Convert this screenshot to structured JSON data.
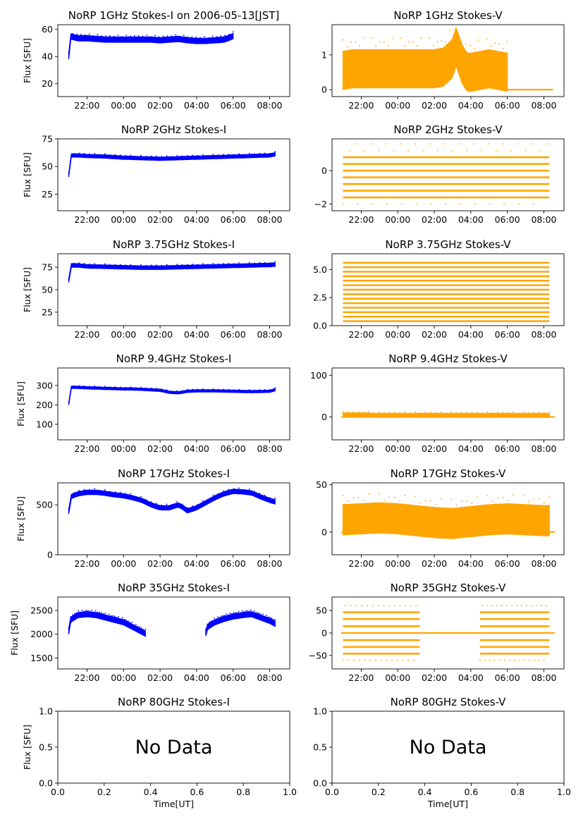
{
  "chart_data": [
    {
      "type": "scatter",
      "title": "NoRP 1GHz Stokes-I on 2006-05-13[JST]",
      "ylabel": "Flux [SFU]",
      "xlabel": "",
      "color": "#0000ff",
      "xlim": [
        20.4,
        33.1
      ],
      "ylim": [
        10.5,
        63.5
      ],
      "xticks": [
        22,
        24,
        26,
        28,
        30,
        32
      ],
      "xticklabels": [
        "22:00",
        "00:00",
        "02:00",
        "04:00",
        "06:00",
        "08:00"
      ],
      "yticks": [
        20,
        40,
        60
      ],
      "yticklabels": [
        "20",
        "40",
        "60"
      ],
      "x": [
        21.0,
        21.05,
        21.2,
        21.5,
        22,
        22.5,
        23,
        23.5,
        24,
        24.5,
        25,
        25.5,
        26,
        26.5,
        27,
        27.5,
        28,
        28.5,
        29,
        29.5,
        30.0
      ],
      "y": [
        40,
        55,
        54.5,
        53.5,
        53.5,
        53,
        52.5,
        52.5,
        52.5,
        52.5,
        52.5,
        52.5,
        52,
        52.5,
        53,
        52,
        51.5,
        51.5,
        52,
        52.5,
        55
      ],
      "band": 2
    },
    {
      "type": "scatter",
      "title": "NoRP 1GHz Stokes-V",
      "ylabel": "",
      "xlabel": "",
      "color": "#ffa500",
      "xlim": [
        20.4,
        33.1
      ],
      "ylim": [
        -0.2,
        1.87
      ],
      "xticks": [
        22,
        24,
        26,
        28,
        30,
        32
      ],
      "xticklabels": [
        "22:00",
        "00:00",
        "02:00",
        "04:00",
        "06:00",
        "08:00"
      ],
      "yticks": [
        0,
        1
      ],
      "yticklabels": [
        "0",
        "1"
      ],
      "x": [
        21.0,
        21.5,
        22,
        23,
        24,
        25,
        26,
        26.5,
        27,
        27.2,
        27.5,
        27.8,
        28,
        28.5,
        29,
        29.5,
        30.0
      ],
      "y": [
        0.55,
        0.6,
        0.6,
        0.6,
        0.6,
        0.6,
        0.6,
        0.65,
        0.9,
        1.25,
        0.75,
        0.5,
        0.5,
        0.55,
        0.6,
        0.55,
        0.5
      ],
      "band": 0.55,
      "flat": {
        "x": [
          30.0,
          32.5
        ],
        "y": 0
      }
    },
    {
      "type": "scatter",
      "title": "NoRP 2GHz Stokes-I",
      "ylabel": "Flux [SFU]",
      "xlabel": "",
      "color": "#0000ff",
      "xlim": [
        20.4,
        33.1
      ],
      "ylim": [
        10,
        75
      ],
      "xticks": [
        22,
        24,
        26,
        28,
        30,
        32
      ],
      "xticklabels": [
        "22:00",
        "00:00",
        "02:00",
        "04:00",
        "06:00",
        "08:00"
      ],
      "yticks": [
        25,
        50,
        75
      ],
      "yticklabels": [
        "25",
        "50",
        "75"
      ],
      "x": [
        21.0,
        21.1,
        21.5,
        22,
        23,
        24,
        25,
        26,
        27,
        28,
        29,
        30,
        31,
        32,
        32.3
      ],
      "y": [
        42,
        60,
        60,
        59.5,
        59,
        58,
        57.5,
        57,
        57.5,
        58,
        58.5,
        59,
        59.5,
        60,
        61
      ],
      "band": 1.5
    },
    {
      "type": "scatter",
      "title": "NoRP 2GHz Stokes-V",
      "ylabel": "",
      "xlabel": "",
      "color": "#ffa500",
      "xlim": [
        20.4,
        33.1
      ],
      "ylim": [
        -2.4,
        1.9
      ],
      "xticks": [
        22,
        24,
        26,
        28,
        30,
        32
      ],
      "xticklabels": [
        "22:00",
        "00:00",
        "02:00",
        "04:00",
        "06:00",
        "08:00"
      ],
      "yticks": [
        -2,
        0
      ],
      "yticklabels": [
        "−2",
        "0"
      ],
      "levels": [
        -1.6,
        -1.2,
        -0.8,
        -0.4,
        0,
        0.4,
        0.8
      ],
      "levelsx": [
        21.0,
        32.3
      ],
      "sparse": [
        -2.0,
        1.2,
        1.6
      ]
    },
    {
      "type": "scatter",
      "title": "NoRP 3.75GHz Stokes-I",
      "ylabel": "Flux [SFU]",
      "xlabel": "",
      "color": "#0000ff",
      "xlim": [
        20.4,
        33.1
      ],
      "ylim": [
        10,
        90
      ],
      "xticks": [
        22,
        24,
        26,
        28,
        30,
        32
      ],
      "xticklabels": [
        "22:00",
        "00:00",
        "02:00",
        "04:00",
        "06:00",
        "08:00"
      ],
      "yticks": [
        25,
        50,
        75
      ],
      "yticklabels": [
        "25",
        "50",
        "75"
      ],
      "x": [
        21.0,
        21.1,
        21.5,
        22,
        23,
        24,
        25,
        26,
        27,
        28,
        29,
        30,
        31,
        32,
        32.3
      ],
      "y": [
        60,
        77,
        77,
        76,
        75.5,
        75,
        74.5,
        74.5,
        75,
        75.5,
        76,
        76.5,
        77,
        77.5,
        78
      ],
      "band": 2
    },
    {
      "type": "scatter",
      "title": "NoRP 3.75GHz Stokes-V",
      "ylabel": "",
      "xlabel": "",
      "color": "#ffa500",
      "xlim": [
        20.4,
        33.1
      ],
      "ylim": [
        0,
        6.4
      ],
      "xticks": [
        22,
        24,
        26,
        28,
        30,
        32
      ],
      "xticklabels": [
        "22:00",
        "00:00",
        "02:00",
        "04:00",
        "06:00",
        "08:00"
      ],
      "yticks": [
        0,
        2.5,
        5
      ],
      "yticklabels": [
        "0.0",
        "2.5",
        "5.0"
      ],
      "levels": [
        0.4,
        0.8,
        1.2,
        1.6,
        2.0,
        2.4,
        2.8,
        3.2,
        3.6,
        4.0,
        4.4,
        4.8,
        5.2,
        5.6
      ],
      "levelsx": [
        21.0,
        32.3
      ],
      "sparse": []
    },
    {
      "type": "scatter",
      "title": "NoRP 9.4GHz Stokes-I",
      "ylabel": "Flux [SFU]",
      "xlabel": "",
      "color": "#0000ff",
      "xlim": [
        20.4,
        33.1
      ],
      "ylim": [
        20,
        390
      ],
      "xticks": [
        22,
        24,
        26,
        28,
        30,
        32
      ],
      "xticklabels": [
        "22:00",
        "00:00",
        "02:00",
        "04:00",
        "06:00",
        "08:00"
      ],
      "yticks": [
        100,
        200,
        300
      ],
      "yticklabels": [
        "100",
        "200",
        "300"
      ],
      "x": [
        21.0,
        21.1,
        21.5,
        22,
        23,
        24,
        24.5,
        25,
        26,
        26.5,
        27,
        27.5,
        28,
        29,
        30,
        31,
        32,
        32.3
      ],
      "y": [
        205,
        290,
        290,
        288,
        285,
        282,
        282,
        280,
        275,
        265,
        262,
        270,
        272,
        272,
        270,
        268,
        270,
        278
      ],
      "band": 6
    },
    {
      "type": "scatter",
      "title": "NoRP 9.4GHz Stokes-V",
      "ylabel": "",
      "xlabel": "",
      "color": "#ffa500",
      "xlim": [
        20.4,
        33.1
      ],
      "ylim": [
        -55,
        118
      ],
      "xticks": [
        22,
        24,
        26,
        28,
        30,
        32
      ],
      "xticklabels": [
        "22:00",
        "00:00",
        "02:00",
        "04:00",
        "06:00",
        "08:00"
      ],
      "yticks": [
        0,
        100
      ],
      "yticklabels": [
        "0",
        "100"
      ],
      "x": [
        21.0,
        22,
        23,
        24,
        25,
        26,
        27,
        28,
        29,
        30,
        31,
        32,
        32.3
      ],
      "y": [
        5,
        5,
        4,
        4,
        4,
        4,
        4,
        4,
        4,
        4,
        4,
        4,
        4
      ],
      "band": 5,
      "flat": {
        "x": [
          20.9,
          32.6
        ],
        "y": 0
      }
    },
    {
      "type": "scatter",
      "title": "NoRP 17GHz Stokes-I",
      "ylabel": "Flux [SFU]",
      "xlabel": "",
      "color": "#0000ff",
      "xlim": [
        20.4,
        33.1
      ],
      "ylim": [
        0,
        720
      ],
      "xticks": [
        22,
        24,
        26,
        28,
        30,
        32
      ],
      "xticklabels": [
        "22:00",
        "00:00",
        "02:00",
        "04:00",
        "06:00",
        "08:00"
      ],
      "yticks": [
        0,
        500
      ],
      "yticklabels": [
        "0",
        "500"
      ],
      "x": [
        21.0,
        21.1,
        21.5,
        22,
        22.5,
        23,
        23.5,
        24,
        24.5,
        25,
        25.5,
        26,
        26.5,
        27,
        27.2,
        27.5,
        28,
        28.5,
        29,
        29.5,
        30,
        30.5,
        31,
        31.5,
        32,
        32.3
      ],
      "y": [
        430,
        580,
        610,
        625,
        625,
        615,
        600,
        590,
        570,
        545,
        500,
        470,
        470,
        500,
        480,
        440,
        470,
        520,
        570,
        610,
        635,
        630,
        620,
        580,
        545,
        530
      ],
      "band": 22
    },
    {
      "type": "scatter",
      "title": "NoRP 17GHz Stokes-V",
      "ylabel": "",
      "xlabel": "",
      "color": "#ffa500",
      "xlim": [
        20.4,
        33.1
      ],
      "ylim": [
        -24,
        52
      ],
      "xticks": [
        22,
        24,
        26,
        28,
        30,
        32
      ],
      "xticklabels": [
        "22:00",
        "00:00",
        "02:00",
        "04:00",
        "06:00",
        "08:00"
      ],
      "yticks": [
        0,
        50
      ],
      "yticklabels": [
        "0",
        "50"
      ],
      "x": [
        21.0,
        22,
        23,
        24,
        25,
        26,
        27,
        28,
        29,
        30,
        31,
        32,
        32.3
      ],
      "y": [
        13,
        14,
        15,
        14,
        12,
        10,
        9,
        11,
        13,
        14,
        13,
        12,
        12
      ],
      "band": 16,
      "flat": {
        "x": [
          20.9,
          32.6
        ],
        "y": 0
      }
    },
    {
      "type": "scatter",
      "title": "NoRP 35GHz Stokes-I",
      "ylabel": "Flux [SFU]",
      "xlabel": "",
      "color": "#0000ff",
      "xlim": [
        20.4,
        33.1
      ],
      "ylim": [
        1270,
        2780
      ],
      "xticks": [
        22,
        24,
        26,
        28,
        30,
        32
      ],
      "xticklabels": [
        "22:00",
        "00:00",
        "02:00",
        "04:00",
        "06:00",
        "08:00"
      ],
      "yticks": [
        1500,
        2000,
        2500
      ],
      "yticklabels": [
        "1500",
        "2000",
        "2500"
      ],
      "x": [
        21.0,
        21.1,
        21.5,
        22,
        22.5,
        23,
        23.5,
        24,
        24.5,
        25.0,
        25.2
      ],
      "y": [
        2050,
        2300,
        2400,
        2420,
        2400,
        2350,
        2300,
        2250,
        2150,
        2050,
        2010
      ],
      "band": 55,
      "x2": [
        28.5,
        28.6,
        29,
        29.5,
        30,
        30.5,
        31,
        31.5,
        32,
        32.3
      ],
      "y2": [
        2020,
        2150,
        2250,
        2320,
        2370,
        2400,
        2420,
        2350,
        2280,
        2220
      ]
    },
    {
      "type": "scatter",
      "title": "NoRP 35GHz Stokes-V",
      "ylabel": "",
      "xlabel": "",
      "color": "#ffa500",
      "xlim": [
        20.4,
        33.1
      ],
      "ylim": [
        -80,
        80
      ],
      "xticks": [
        22,
        24,
        26,
        28,
        30,
        32
      ],
      "xticklabels": [
        "22:00",
        "00:00",
        "02:00",
        "04:00",
        "06:00",
        "08:00"
      ],
      "yticks": [
        -50,
        0,
        50
      ],
      "yticklabels": [
        "−50",
        "0",
        "50"
      ],
      "levels": [
        -46,
        -31,
        -16,
        15,
        31,
        46
      ],
      "levelsx": [
        21.0,
        25.2
      ],
      "levelsx2": [
        28.5,
        32.3
      ],
      "sparse": [
        -61,
        61
      ],
      "flat": {
        "x": [
          20.9,
          32.6
        ],
        "y": 0
      }
    },
    {
      "type": "empty",
      "title": "NoRP 80GHz Stokes-I",
      "ylabel": "Flux [SFU]",
      "xlabel": "Time[UT]",
      "note": "No Data",
      "xlim": [
        0,
        1
      ],
      "ylim": [
        0,
        1
      ],
      "xticks": [
        0,
        0.2,
        0.4,
        0.6,
        0.8,
        1
      ],
      "xticklabels": [
        "0.0",
        "0.2",
        "0.4",
        "0.6",
        "0.8",
        "1.0"
      ],
      "yticks": [
        0,
        0.5,
        1
      ],
      "yticklabels": [
        "0.0",
        "0.5",
        "1.0"
      ]
    },
    {
      "type": "empty",
      "title": "NoRP 80GHz Stokes-V",
      "ylabel": "",
      "xlabel": "Time[UT]",
      "note": "No Data",
      "xlim": [
        0,
        1
      ],
      "ylim": [
        0,
        1
      ],
      "xticks": [
        0,
        0.2,
        0.4,
        0.6,
        0.8,
        1
      ],
      "xticklabels": [
        "0.0",
        "0.2",
        "0.4",
        "0.6",
        "0.8",
        "1.0"
      ],
      "yticks": [
        0,
        0.5,
        1
      ],
      "yticklabels": [
        "0.0",
        "0.5",
        "1.0"
      ]
    }
  ]
}
